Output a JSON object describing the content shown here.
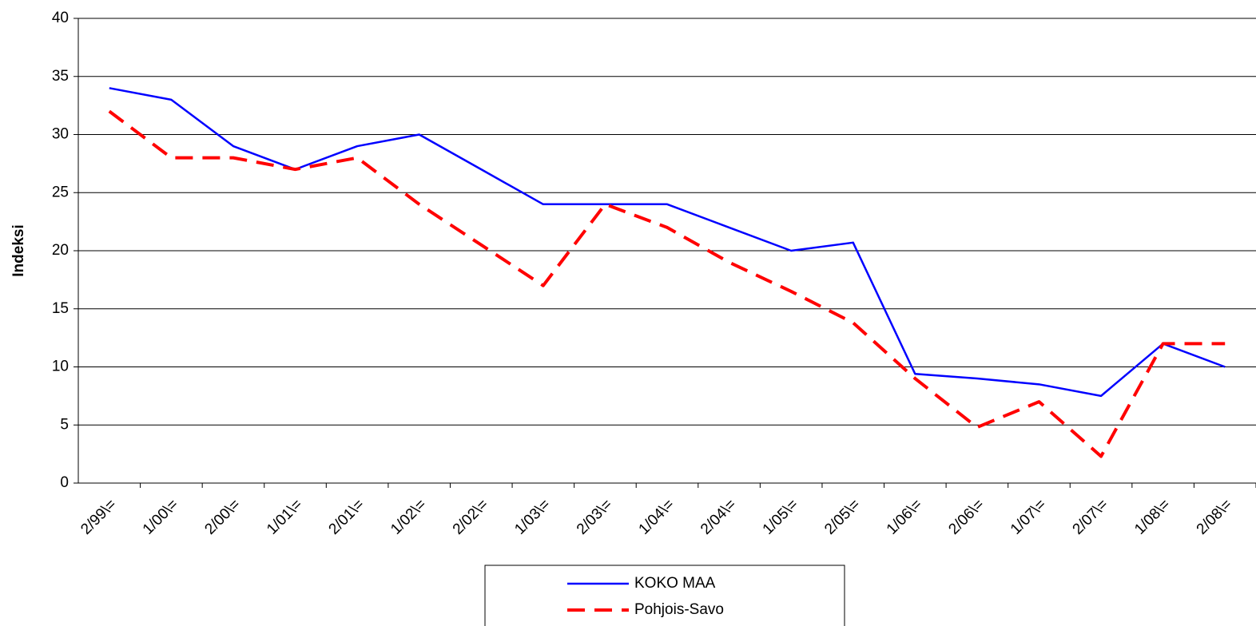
{
  "chart_data": {
    "type": "line",
    "categories": [
      "2/99\\=",
      "1/00\\=",
      "2/00\\=",
      "1/01\\=",
      "2/01\\=",
      "1/02\\=",
      "2/02\\=",
      "1/03\\=",
      "2/03\\=",
      "1/04\\=",
      "2/04\\=",
      "1/05\\=",
      "2/05\\=",
      "1/06\\=",
      "2/06\\=",
      "1/07\\=",
      "2/07\\=",
      "1/08\\=",
      "2/08\\="
    ],
    "series": [
      {
        "name": "KOKO MAA",
        "color": "#0000ff",
        "dashed": false,
        "values": [
          34,
          33,
          29,
          27,
          29,
          30,
          27,
          24,
          24,
          24,
          22,
          20,
          20.7,
          9.4,
          9,
          8.5,
          7.5,
          12,
          10
        ]
      },
      {
        "name": "Pohjois-Savo",
        "color": "#ff0000",
        "dashed": true,
        "values": [
          32,
          28,
          28,
          27,
          28,
          24,
          20.5,
          17,
          24,
          22,
          19,
          16.5,
          13.8,
          9,
          4.8,
          7,
          2.3,
          12,
          12
        ]
      }
    ],
    "y_label": "Indeksi",
    "ylim": [
      0,
      40
    ],
    "yticks": [
      0,
      5,
      10,
      15,
      20,
      25,
      30,
      35,
      40
    ],
    "grid": true
  }
}
